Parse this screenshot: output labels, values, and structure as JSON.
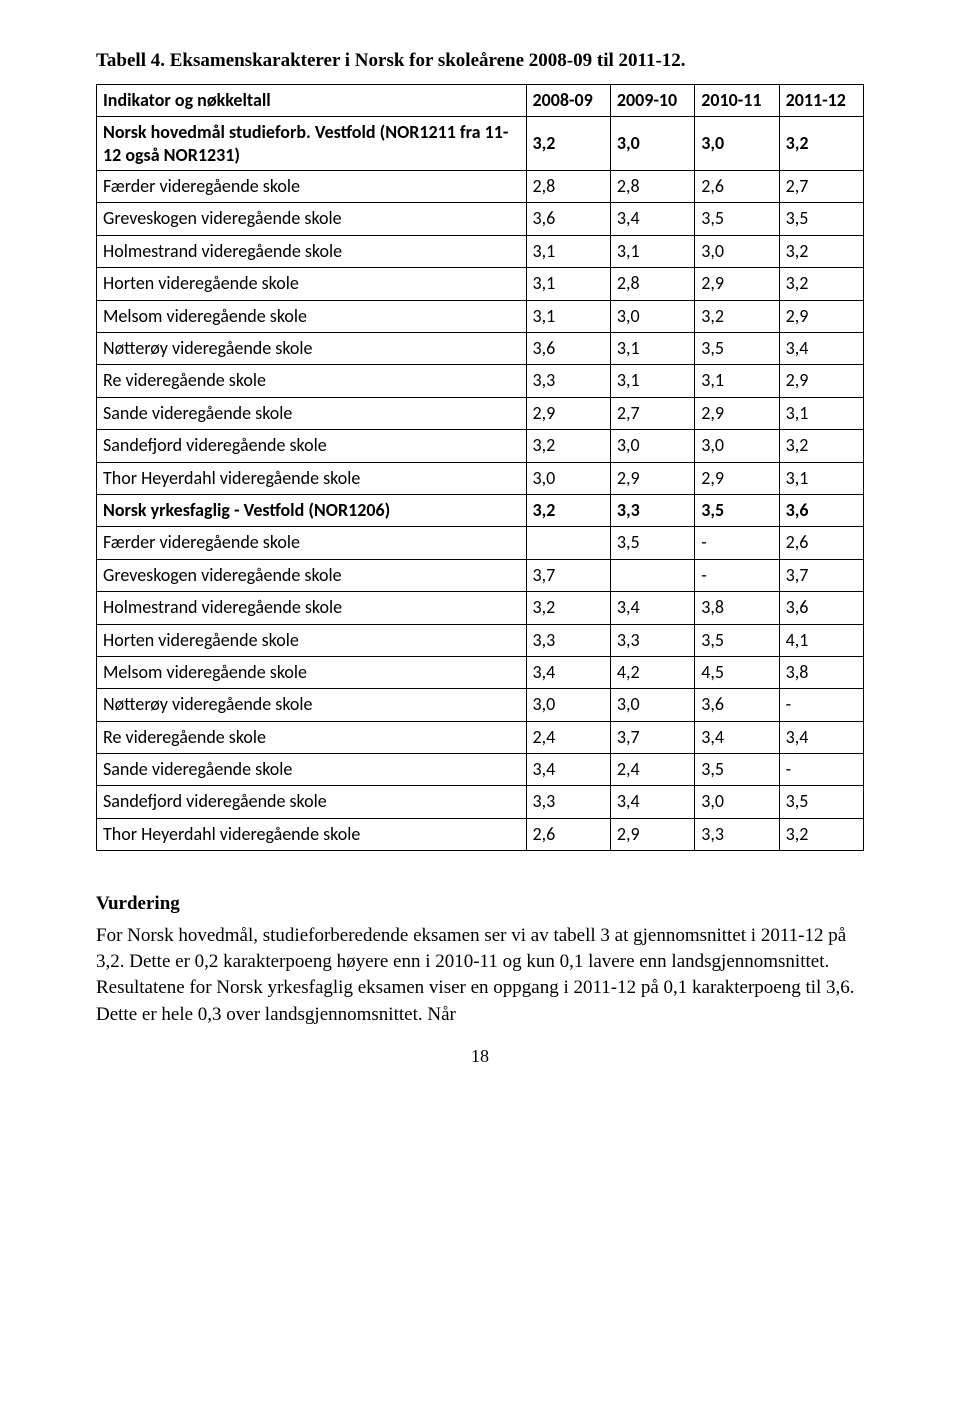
{
  "title": "Tabell 4. Eksamenskarakterer i Norsk for skoleårene 2008-09 til 2011-12.",
  "table": {
    "header": {
      "label": "Indikator og nøkkeltall",
      "cols": [
        "2008-09",
        "2009-10",
        "2010-11",
        "2011-12"
      ]
    },
    "rows": [
      {
        "bold": true,
        "label": "Norsk hovedmål studieforb. Vestfold (NOR1211 fra 11-12 også NOR1231)",
        "vals": [
          "3,2",
          "3,0",
          "3,0",
          "3,2"
        ],
        "multiline": true
      },
      {
        "bold": false,
        "label": "Færder videregående skole",
        "vals": [
          "2,8",
          "2,8",
          "2,6",
          "2,7"
        ]
      },
      {
        "bold": false,
        "label": "Greveskogen videregående skole",
        "vals": [
          "3,6",
          "3,4",
          "3,5",
          "3,5"
        ]
      },
      {
        "bold": false,
        "label": "Holmestrand videregående skole",
        "vals": [
          "3,1",
          "3,1",
          "3,0",
          "3,2"
        ]
      },
      {
        "bold": false,
        "label": "Horten videregående skole",
        "vals": [
          "3,1",
          "2,8",
          "2,9",
          "3,2"
        ]
      },
      {
        "bold": false,
        "label": "Melsom videregående skole",
        "vals": [
          "3,1",
          "3,0",
          "3,2",
          "2,9"
        ]
      },
      {
        "bold": false,
        "label": "Nøtterøy videregående skole",
        "vals": [
          "3,6",
          "3,1",
          "3,5",
          "3,4"
        ]
      },
      {
        "bold": false,
        "label": "Re videregående skole",
        "vals": [
          "3,3",
          "3,1",
          "3,1",
          "2,9"
        ]
      },
      {
        "bold": false,
        "label": "Sande videregående skole",
        "vals": [
          "2,9",
          "2,7",
          "2,9",
          "3,1"
        ]
      },
      {
        "bold": false,
        "label": "Sandefjord videregående skole",
        "vals": [
          "3,2",
          "3,0",
          "3,0",
          "3,2"
        ]
      },
      {
        "bold": false,
        "label": "Thor Heyerdahl videregående skole",
        "vals": [
          "3,0",
          "2,9",
          "2,9",
          "3,1"
        ]
      },
      {
        "bold": true,
        "label": "Norsk yrkesfaglig - Vestfold (NOR1206)",
        "vals": [
          "3,2",
          "3,3",
          "3,5",
          "3,6"
        ]
      },
      {
        "bold": false,
        "label": "Færder videregående skole",
        "vals": [
          "",
          "3,5",
          "-",
          "2,6"
        ]
      },
      {
        "bold": false,
        "label": "Greveskogen videregående skole",
        "vals": [
          "3,7",
          "",
          "-",
          "3,7"
        ]
      },
      {
        "bold": false,
        "label": "Holmestrand videregående skole",
        "vals": [
          "3,2",
          "3,4",
          "3,8",
          "3,6"
        ]
      },
      {
        "bold": false,
        "label": "Horten videregående skole",
        "vals": [
          "3,3",
          "3,3",
          "3,5",
          "4,1"
        ]
      },
      {
        "bold": false,
        "label": "Melsom videregående skole",
        "vals": [
          "3,4",
          "4,2",
          "4,5",
          "3,8"
        ]
      },
      {
        "bold": false,
        "label": "Nøtterøy videregående skole",
        "vals": [
          "3,0",
          "3,0",
          "3,6",
          "-"
        ]
      },
      {
        "bold": false,
        "label": "Re videregående skole",
        "vals": [
          "2,4",
          "3,7",
          "3,4",
          "3,4"
        ]
      },
      {
        "bold": false,
        "label": "Sande videregående skole",
        "vals": [
          "3,4",
          "2,4",
          "3,5",
          "-"
        ]
      },
      {
        "bold": false,
        "label": "Sandefjord videregående skole",
        "vals": [
          "3,3",
          "3,4",
          "3,0",
          "3,5"
        ]
      },
      {
        "bold": false,
        "label": "Thor Heyerdahl videregående skole",
        "vals": [
          "2,6",
          "2,9",
          "3,3",
          "3,2"
        ]
      }
    ]
  },
  "assessment": {
    "heading": "Vurdering",
    "body": "For Norsk hovedmål, studieforberedende eksamen ser vi av tabell 3 at gjennomsnittet i 2011-12 på 3,2. Dette er 0,2 karakterpoeng høyere enn i 2010-11 og kun 0,1 lavere enn landsgjennomsnittet. Resultatene for Norsk yrkesfaglig eksamen viser en oppgang i 2011-12 på 0,1 karakterpoeng til 3,6. Dette er hele 0,3 over landsgjennomsnittet. Når"
  },
  "page_number": "18"
}
